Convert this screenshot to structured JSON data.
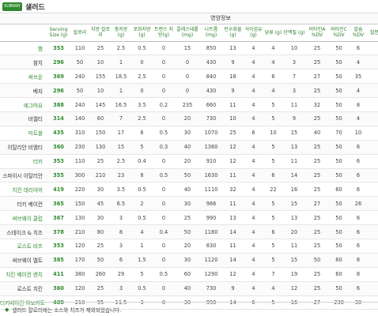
{
  "header": {
    "logo_text": "SUBWAY",
    "title": "샐러드"
  },
  "table": {
    "band_label": "영양정보",
    "columns": [
      "Serving Size (g)",
      "칼로리",
      "지방 칼로리",
      "총지방 (g)",
      "포화지방 (g)",
      "트랜스 지방(g)",
      "콜레스테롤 (mg)",
      "나트륨 (mg)",
      "탄수화물 (g)",
      "식이섬유 (g)",
      "당류 (g)",
      "단백질 (g)",
      "비타민A %DV",
      "비타민C %DV",
      "칼슘 %DV",
      "철분 %DV"
    ],
    "rows": [
      {
        "name": "햄",
        "green": true,
        "values": [
          "353",
          "110",
          "25",
          "2.5",
          "0.5",
          "0",
          "15",
          "850",
          "13",
          "4",
          "4",
          "10",
          "25",
          "50",
          "6",
          "8"
        ]
      },
      {
        "name": "참치",
        "green": false,
        "values": [
          "296",
          "50",
          "10",
          "1",
          "0",
          "0",
          "0",
          "430",
          "9",
          "4",
          "4",
          "3",
          "25",
          "50",
          "4",
          "6"
        ]
      },
      {
        "name": "써브온",
        "green": true,
        "values": [
          "369",
          "240",
          "155",
          "18.5",
          "2.5",
          "0",
          "0",
          "840",
          "16",
          "4",
          "6",
          "7",
          "27",
          "50",
          "35",
          "6"
        ]
      },
      {
        "name": "베지",
        "green": false,
        "values": [
          "296",
          "50",
          "10",
          "1",
          "0",
          "0",
          "0",
          "430",
          "9",
          "4",
          "4",
          "3",
          "25",
          "50",
          "4",
          "6"
        ]
      },
      {
        "name": "에그마요",
        "green": true,
        "values": [
          "388",
          "240",
          "145",
          "16.5",
          "3.5",
          "0.2",
          "235",
          "660",
          "11",
          "4",
          "5",
          "11",
          "32",
          "50",
          "8",
          "11"
        ]
      },
      {
        "name": "비엘티",
        "green": false,
        "values": [
          "314",
          "140",
          "60",
          "7",
          "2.5",
          "0",
          "20",
          "730",
          "10",
          "4",
          "5",
          "9",
          "25",
          "50",
          "4",
          "8"
        ]
      },
      {
        "name": "미트볼",
        "green": true,
        "values": [
          "435",
          "310",
          "150",
          "17",
          "6",
          "0.5",
          "30",
          "1070",
          "25",
          "6",
          "10",
          "15",
          "40",
          "70",
          "10",
          "15"
        ]
      },
      {
        "name": "이탈리안 비엠티",
        "green": false,
        "values": [
          "360",
          "230",
          "130",
          "15",
          "5",
          "0.3",
          "40",
          "1360",
          "12",
          "4",
          "5",
          "13",
          "25",
          "50",
          "6",
          "8"
        ]
      },
      {
        "name": "터키",
        "green": true,
        "values": [
          "353",
          "110",
          "25",
          "2.5",
          "0.4",
          "0",
          "20",
          "910",
          "12",
          "4",
          "5",
          "11",
          "25",
          "50",
          "6",
          "8"
        ]
      },
      {
        "name": "스파이시 이탈리안",
        "green": false,
        "values": [
          "355",
          "300",
          "210",
          "23",
          "8",
          "0.5",
          "50",
          "1630",
          "11",
          "4",
          "6",
          "14",
          "25",
          "50",
          "6",
          "10"
        ]
      },
      {
        "name": "치킨 데리야끼",
        "green": true,
        "values": [
          "419",
          "220",
          "30",
          "3.5",
          "0.5",
          "0",
          "40",
          "1110",
          "32",
          "4",
          "22",
          "16",
          "25",
          "60",
          "6",
          "8"
        ]
      },
      {
        "name": "터키 베이컨",
        "green": false,
        "values": [
          "365",
          "150",
          "45",
          "6.5",
          "2",
          "0",
          "30",
          "986",
          "11",
          "4",
          "5",
          "15",
          "27",
          "50",
          "26",
          "9"
        ]
      },
      {
        "name": "써브웨이 클럽",
        "green": true,
        "values": [
          "367",
          "130",
          "30",
          "3",
          "0.5",
          "0",
          "25",
          "990",
          "13",
          "4",
          "5",
          "13",
          "25",
          "50",
          "6",
          "8"
        ]
      },
      {
        "name": "스테이크 & 치즈",
        "green": false,
        "values": [
          "378",
          "210",
          "80",
          "8",
          "4",
          "0.4",
          "50",
          "1180",
          "14",
          "4",
          "6",
          "20",
          "25",
          "50",
          "6",
          "15"
        ]
      },
      {
        "name": "로스트 비프",
        "green": true,
        "values": [
          "353",
          "120",
          "25",
          "3",
          "1",
          "0",
          "20",
          "830",
          "11",
          "4",
          "5",
          "11",
          "25",
          "50",
          "6",
          "8"
        ]
      },
      {
        "name": "써브웨이 멜트",
        "green": false,
        "values": [
          "385",
          "170",
          "50",
          "6",
          "1.5",
          "0",
          "30",
          "1120",
          "14",
          "4",
          "5",
          "15",
          "50",
          "60",
          "8",
          "8"
        ]
      },
      {
        "name": "치킨 베이컨 랜치",
        "green": true,
        "values": [
          "411",
          "380",
          "260",
          "29",
          "5",
          "0.5",
          "60",
          "1290",
          "12",
          "4",
          "7",
          "19",
          "25",
          "60",
          "8",
          "8"
        ]
      },
      {
        "name": "로스트 치킨",
        "green": false,
        "values": [
          "360",
          "120",
          "25",
          "3",
          "0.5",
          "0",
          "40",
          "730",
          "9",
          "4",
          "4",
          "12",
          "25",
          "50",
          "6",
          "8"
        ]
      },
      {
        "name": "터키베이컨 아보카도",
        "green": true,
        "values": [
          "400",
          "210",
          "95",
          "11.5",
          "3",
          "0",
          "30",
          "990",
          "14",
          "6",
          "5",
          "16",
          "27",
          "230",
          "30",
          "11"
        ]
      }
    ]
  },
  "footer": {
    "bullet": "◆",
    "note": "샐러드 칼로리에는 소스와 치즈가 제외되었습니다."
  }
}
